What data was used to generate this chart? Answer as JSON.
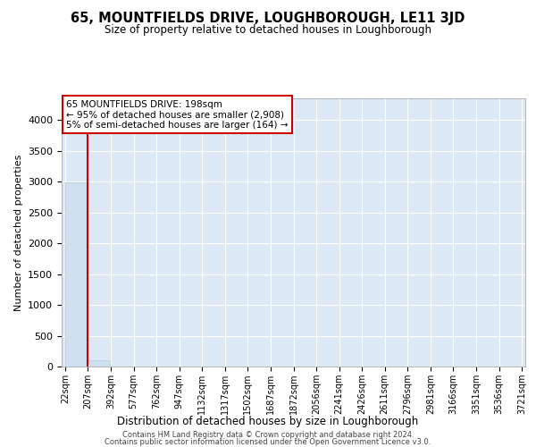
{
  "title": "65, MOUNTFIELDS DRIVE, LOUGHBOROUGH, LE11 3JD",
  "subtitle": "Size of property relative to detached houses in Loughborough",
  "xlabel": "Distribution of detached houses by size in Loughborough",
  "ylabel": "Number of detached properties",
  "bar_color": "#cce0f0",
  "bar_edge_color": "#aacce0",
  "annotation_line1": "65 MOUNTFIELDS DRIVE: 198sqm",
  "annotation_line2": "← 95% of detached houses are smaller (2,908)",
  "annotation_line3": "5% of semi-detached houses are larger (164) →",
  "annotation_box_color": "#cc0000",
  "annotation_box_fill": "white",
  "vline_x_index": 1,
  "vline_color": "#cc0000",
  "footer_line1": "Contains HM Land Registry data © Crown copyright and database right 2024.",
  "footer_line2": "Contains public sector information licensed under the Open Government Licence v3.0.",
  "background_color": "#dce9f5",
  "bins": [
    22,
    207,
    392,
    577,
    762,
    947,
    1132,
    1317,
    1502,
    1687,
    1872,
    2056,
    2241,
    2426,
    2611,
    2796,
    2981,
    3166,
    3351,
    3536,
    3721
  ],
  "bin_labels": [
    "22sqm",
    "207sqm",
    "392sqm",
    "577sqm",
    "762sqm",
    "947sqm",
    "1132sqm",
    "1317sqm",
    "1502sqm",
    "1687sqm",
    "1872sqm",
    "2056sqm",
    "2241sqm",
    "2426sqm",
    "2611sqm",
    "2796sqm",
    "2981sqm",
    "3166sqm",
    "3351sqm",
    "3536sqm",
    "3721sqm"
  ],
  "heights": [
    2980,
    100,
    5,
    2,
    1,
    1,
    0,
    0,
    0,
    0,
    0,
    0,
    0,
    0,
    0,
    0,
    0,
    0,
    0,
    0
  ],
  "ylim": [
    0,
    4350
  ],
  "yticks": [
    0,
    500,
    1000,
    1500,
    2000,
    2500,
    3000,
    3500,
    4000
  ],
  "title_fontsize": 10.5,
  "subtitle_fontsize": 8.5,
  "ylabel_fontsize": 8,
  "xlabel_fontsize": 8.5,
  "tick_fontsize": 7,
  "annotation_fontsize": 7.5,
  "footer_fontsize": 6
}
